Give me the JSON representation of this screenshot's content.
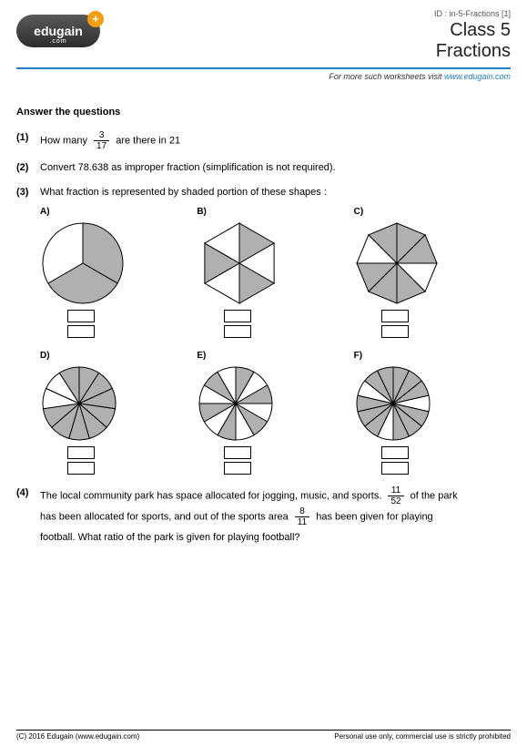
{
  "brand": {
    "name": "edugain",
    "sub": ".com",
    "plus": "+"
  },
  "header": {
    "id_line": "ID : in-5-Fractions [1]",
    "title1": "Class 5",
    "title2": "Fractions",
    "visit_prefix": "For more such worksheets visit ",
    "visit_link": "www.edugain.com"
  },
  "section_title": "Answer the questions",
  "q1": {
    "num": "(1)",
    "t1": "How many ",
    "frac_n": "3",
    "frac_d": "17",
    "t2": " are there in 21"
  },
  "q2": {
    "num": "(2)",
    "text": "Convert 78.638 as improper fraction (simplification is not required)."
  },
  "q3": {
    "num": "(3)",
    "text": "What fraction is represented by shaded portion of these shapes :",
    "shapes": [
      {
        "label": "A)",
        "type": "circle",
        "slices": 3,
        "shaded": [
          0,
          1
        ],
        "radius": 44
      },
      {
        "label": "B)",
        "type": "hexagon",
        "slices": 6,
        "shaded": [
          0,
          2,
          4
        ],
        "radius": 44
      },
      {
        "label": "C)",
        "type": "octagon",
        "slices": 8,
        "shaded": [
          0,
          1,
          3,
          4,
          5,
          7
        ],
        "radius": 44
      },
      {
        "label": "D)",
        "type": "circle",
        "slices": 11,
        "shaded": [
          0,
          1,
          2,
          3,
          4,
          5,
          6,
          7,
          10
        ],
        "radius": 40
      },
      {
        "label": "E)",
        "type": "circle",
        "slices": 12,
        "shaded": [
          0,
          2,
          4,
          6,
          8,
          10
        ],
        "radius": 40
      },
      {
        "label": "F)",
        "type": "circle",
        "slices": 14,
        "shaded": [
          0,
          1,
          2,
          4,
          5,
          6,
          8,
          9,
          10,
          12,
          13
        ],
        "radius": 40
      }
    ],
    "style": {
      "fill_shaded": "#b0b0b0",
      "fill_unshaded": "#ffffff",
      "stroke": "#000000",
      "stroke_width": 1
    }
  },
  "q4": {
    "num": "(4)",
    "t1": "The local community park has space allocated for jogging, music, and sports. ",
    "f1n": "11",
    "f1d": "52",
    "t2": " of the park",
    "t3": "has been allocated for sports, and out of the sports area ",
    "f2n": "8",
    "f2d": "11",
    "t4": " has been given for playing",
    "t5": "football. What ratio of the park is given for playing football?"
  },
  "footer": {
    "left": "(C) 2016 Edugain (www.edugain.com)",
    "right": "Personal use only, commercial use is strictly prohibited"
  }
}
